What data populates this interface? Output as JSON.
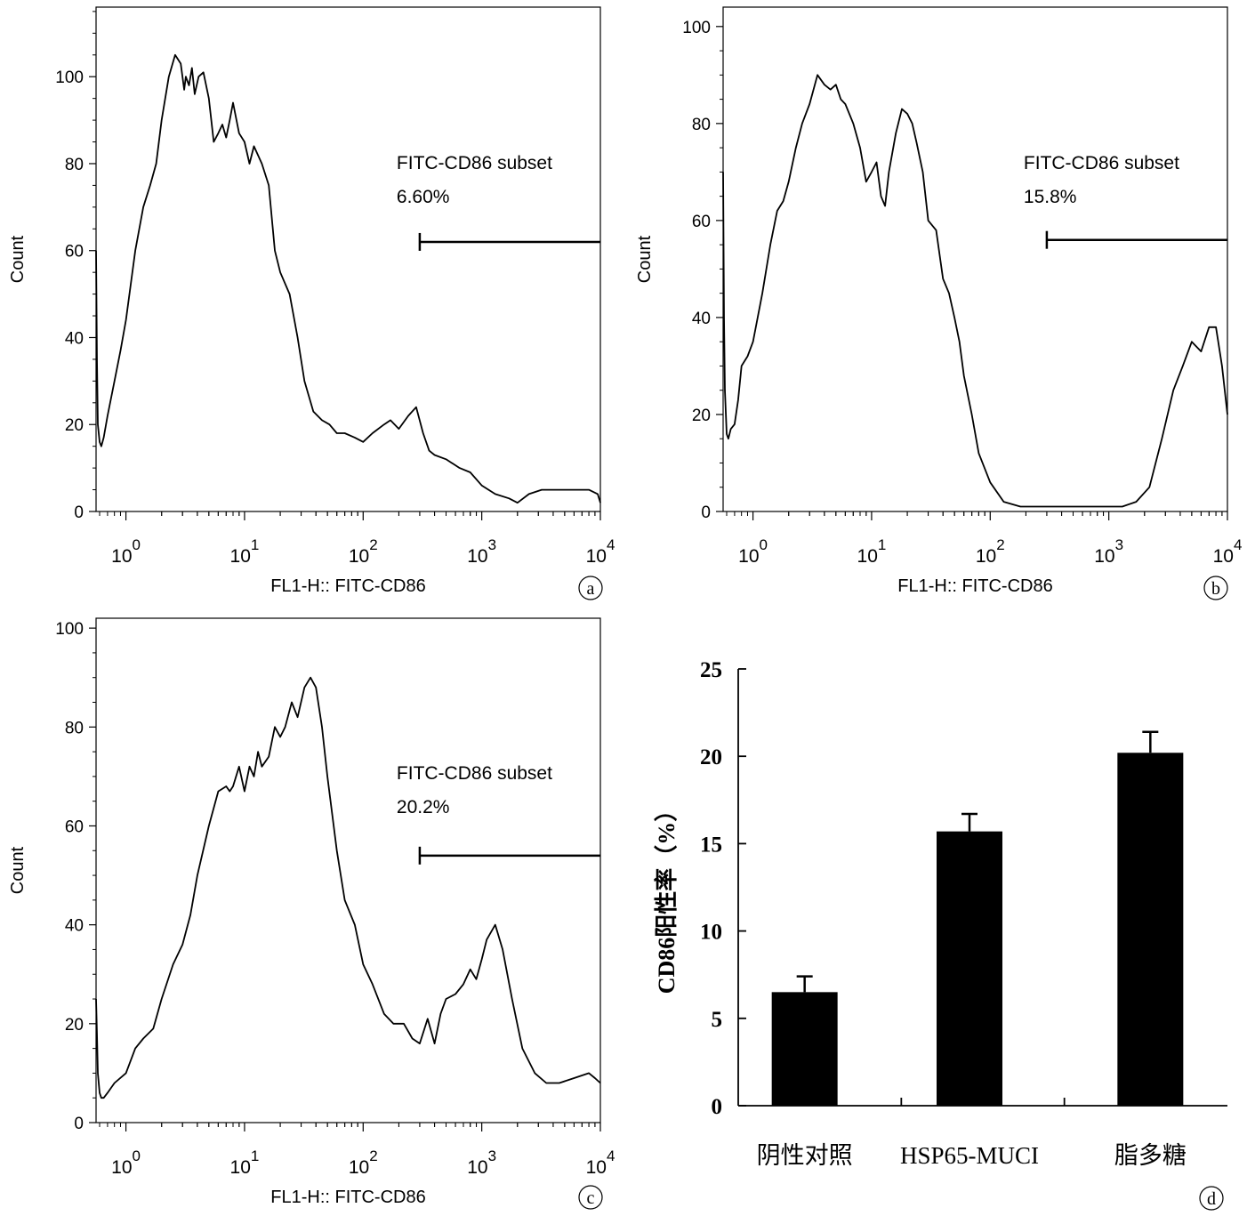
{
  "panels": [
    {
      "id": "a",
      "panel_label": "a",
      "gate": {
        "name": "FITC-CD86 subset",
        "value": "6.60%",
        "range": [
          300,
          10000
        ],
        "level": 62
      }
    },
    {
      "id": "b",
      "panel_label": "b",
      "gate": {
        "name": "FITC-CD86 subset",
        "value": "15.8%",
        "range": [
          300,
          10000
        ],
        "level": 56
      }
    },
    {
      "id": "c",
      "panel_label": "c",
      "gate": {
        "name": "FITC-CD86 subset",
        "value": "20.2%",
        "range": [
          300,
          10000
        ],
        "level": 54
      }
    },
    {
      "id": "d",
      "panel_label": "d"
    }
  ],
  "chart_data": [
    {
      "type": "line",
      "panel": "a",
      "xlabel": "FL1-H:: FITC-CD86",
      "ylabel": "Count",
      "xscale": "log",
      "xlim": [
        0.56,
        10000
      ],
      "ylim": [
        0,
        116
      ],
      "yticks": [
        0,
        20,
        40,
        60,
        80,
        100
      ],
      "xtick_labels": [
        "10^0",
        "10^1",
        "10^2",
        "10^3",
        "10^4"
      ],
      "series": [
        {
          "x": [
            0.56,
            0.57,
            0.58,
            0.6,
            0.62,
            0.65,
            0.7,
            0.8,
            0.9,
            1.0,
            1.2,
            1.4,
            1.6,
            1.8,
            2.0,
            2.3,
            2.6,
            2.9,
            3.1,
            3.2,
            3.4,
            3.6,
            3.8,
            4.1,
            4.5,
            5.0,
            5.5,
            6.0,
            6.5,
            7.0,
            7.5,
            8.0,
            9.0,
            10.0,
            11.0,
            12.0,
            14.0,
            16.0,
            18.0,
            20.0,
            24.0,
            28.0,
            32.0,
            38.0,
            45.0,
            52.0,
            60.0,
            70.0,
            85.0,
            100.0,
            120.0,
            150.0,
            170.0,
            200.0,
            240.0,
            280.0,
            320.0,
            360.0,
            400.0,
            500.0,
            650.0,
            800.0,
            1000.0,
            1300.0,
            1700.0,
            2000.0,
            2500.0,
            3200.0,
            4000.0,
            6000.0,
            8000.0,
            9500.0,
            10000.0
          ],
          "y": [
            60,
            35,
            20,
            16,
            15,
            17,
            22,
            30,
            37,
            44,
            60,
            70,
            75,
            80,
            90,
            100,
            105,
            103,
            97,
            100,
            98,
            102,
            96,
            100,
            101,
            95,
            85,
            87,
            89,
            86,
            90,
            94,
            87,
            85,
            80,
            84,
            80,
            75,
            60,
            55,
            50,
            40,
            30,
            23,
            21,
            20,
            18,
            18,
            17,
            16,
            18,
            20,
            21,
            19,
            22,
            24,
            18,
            14,
            13,
            12,
            10,
            9,
            6,
            4,
            3,
            2,
            4,
            5,
            5,
            5,
            5,
            4,
            2
          ]
        }
      ]
    },
    {
      "type": "line",
      "panel": "b",
      "xlabel": "FL1-H:: FITC-CD86",
      "ylabel": "Count",
      "xscale": "log",
      "xlim": [
        0.56,
        10000
      ],
      "ylim": [
        0,
        104
      ],
      "yticks": [
        0,
        20,
        40,
        60,
        80,
        100
      ],
      "xtick_labels": [
        "10^0",
        "10^1",
        "10^2",
        "10^3",
        "10^4"
      ],
      "series": [
        {
          "x": [
            0.56,
            0.57,
            0.58,
            0.6,
            0.62,
            0.65,
            0.7,
            0.75,
            0.8,
            0.9,
            1.0,
            1.2,
            1.4,
            1.6,
            1.8,
            2.0,
            2.3,
            2.6,
            3.0,
            3.5,
            4.0,
            4.5,
            5.0,
            5.5,
            6.0,
            7.0,
            8.0,
            9.0,
            10.0,
            11.0,
            12.0,
            13.0,
            14.0,
            16.0,
            18.0,
            20.0,
            22.0,
            24.0,
            27.0,
            30.0,
            35.0,
            40.0,
            45.0,
            50.0,
            55.0,
            60.0,
            70.0,
            80.0,
            100.0,
            130.0,
            180.0,
            250.0,
            350.0,
            500.0,
            700.0,
            1000.0,
            1300.0,
            1700.0,
            2200.0,
            2800.0,
            3500.0,
            4200.0,
            5000.0,
            6000.0,
            7000.0,
            8000.0,
            9000.0,
            10000.0
          ],
          "y": [
            70,
            40,
            25,
            16,
            15,
            17,
            18,
            23,
            30,
            32,
            35,
            45,
            55,
            62,
            64,
            68,
            75,
            80,
            84,
            90,
            88,
            87,
            88,
            85,
            84,
            80,
            75,
            68,
            70,
            72,
            65,
            63,
            70,
            78,
            83,
            82,
            80,
            76,
            70,
            60,
            58,
            48,
            45,
            40,
            35,
            28,
            20,
            12,
            6,
            2,
            1,
            1,
            1,
            1,
            1,
            1,
            1,
            2,
            5,
            15,
            25,
            30,
            35,
            33,
            38,
            38,
            30,
            20
          ]
        }
      ]
    },
    {
      "type": "line",
      "panel": "c",
      "xlabel": "FL1-H:: FITC-CD86",
      "ylabel": "Count",
      "xscale": "log",
      "xlim": [
        0.56,
        10000
      ],
      "ylim": [
        0,
        102
      ],
      "yticks": [
        0,
        20,
        40,
        60,
        80,
        100
      ],
      "xtick_labels": [
        "10^0",
        "10^1",
        "10^2",
        "10^3",
        "10^4"
      ],
      "series": [
        {
          "x": [
            0.56,
            0.57,
            0.58,
            0.6,
            0.62,
            0.65,
            0.7,
            0.8,
            1.0,
            1.2,
            1.4,
            1.7,
            2.0,
            2.5,
            3.0,
            3.5,
            4.0,
            5.0,
            6.0,
            7.0,
            7.5,
            8.0,
            9.0,
            10.0,
            11.0,
            12.0,
            13.0,
            14.0,
            16.0,
            18.0,
            20.0,
            22.0,
            25.0,
            28.0,
            32.0,
            36.0,
            40.0,
            45.0,
            50.0,
            60.0,
            70.0,
            85.0,
            100.0,
            120.0,
            150.0,
            180.0,
            220.0,
            260.0,
            300.0,
            350.0,
            400.0,
            450.0,
            500.0,
            600.0,
            700.0,
            800.0,
            900.0,
            1000.0,
            1100.0,
            1300.0,
            1500.0,
            1800.0,
            2200.0,
            2800.0,
            3500.0,
            4500.0,
            6000.0,
            8000.0,
            9000.0,
            10000.0
          ],
          "y": [
            25,
            18,
            10,
            6,
            5,
            5,
            6,
            8,
            10,
            15,
            17,
            19,
            25,
            32,
            36,
            42,
            50,
            60,
            67,
            68,
            67,
            68,
            72,
            67,
            72,
            70,
            75,
            72,
            74,
            80,
            78,
            80,
            85,
            82,
            88,
            90,
            88,
            80,
            70,
            55,
            45,
            40,
            32,
            28,
            22,
            20,
            20,
            17,
            16,
            21,
            16,
            22,
            25,
            26,
            28,
            31,
            29,
            33,
            37,
            40,
            35,
            25,
            15,
            10,
            8,
            8,
            9,
            10,
            9,
            8
          ]
        }
      ]
    },
    {
      "type": "bar",
      "panel": "d",
      "ylabel": "CD86阳性率（%）",
      "ylim": [
        0,
        25
      ],
      "yticks": [
        0,
        5,
        10,
        15,
        20,
        25
      ],
      "categories": [
        "阴性对照",
        "HSP65-MUCI",
        "脂多糖"
      ],
      "values": [
        6.5,
        15.7,
        20.2
      ],
      "errors": [
        0.9,
        1.0,
        1.2
      ]
    }
  ]
}
